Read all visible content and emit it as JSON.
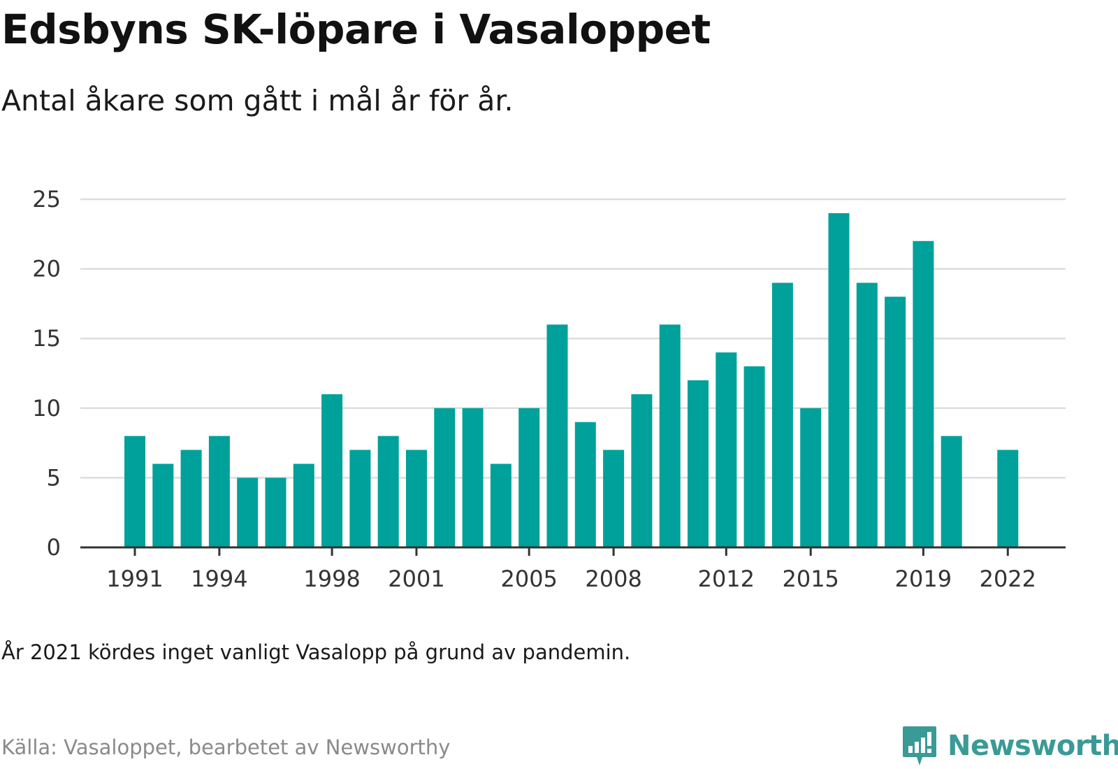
{
  "header": {
    "title": "Edsbyns SK-löpare i Vasaloppet",
    "subtitle": "Antal åkare som gått i mål år för år."
  },
  "footer": {
    "note": "År 2021 kördes inget vanligt Vasalopp på grund av pandemin.",
    "source": "Källa: Vasaloppet, bearbetet av Newsworthy",
    "brand": "Newsworthy",
    "brand_icon": "newsworthy-logo-icon"
  },
  "colors": {
    "bar": "#00a19a",
    "grid": "#dddddd",
    "axis": "#333333",
    "brand": "#3a9a96"
  },
  "chart_data": {
    "type": "bar",
    "x": [
      1991,
      1992,
      1993,
      1994,
      1995,
      1996,
      1997,
      1998,
      1999,
      2000,
      2001,
      2002,
      2003,
      2004,
      2005,
      2006,
      2007,
      2008,
      2009,
      2010,
      2011,
      2012,
      2013,
      2014,
      2015,
      2016,
      2017,
      2018,
      2019,
      2020,
      2021,
      2022
    ],
    "values": [
      8,
      6,
      7,
      8,
      5,
      5,
      6,
      11,
      7,
      8,
      7,
      10,
      10,
      6,
      10,
      16,
      9,
      7,
      11,
      16,
      12,
      14,
      13,
      19,
      10,
      24,
      19,
      18,
      22,
      8,
      null,
      7
    ],
    "x_tick_labels": [
      "1991",
      "1994",
      "1998",
      "2001",
      "2005",
      "2008",
      "2012",
      "2015",
      "2019",
      "2022"
    ],
    "y_ticks": [
      0,
      5,
      10,
      15,
      20,
      25
    ],
    "ylim": [
      0,
      25
    ],
    "grid": true,
    "title": "Edsbyns SK-löpare i Vasaloppet",
    "xlabel": "",
    "ylabel": ""
  }
}
